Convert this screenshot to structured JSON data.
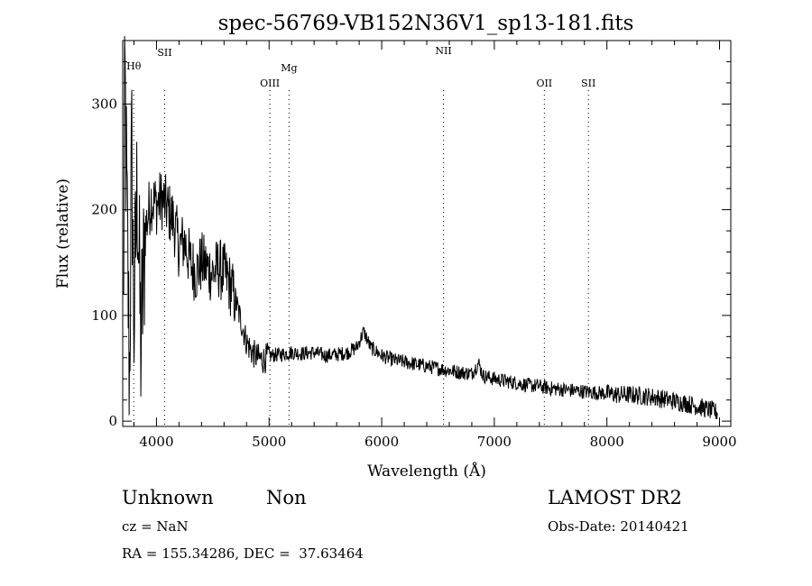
{
  "chart_data": {
    "type": "line",
    "title": "spec-56769-VB152N36V1_sp13-181.fits",
    "xlabel": "Wavelength (Å)",
    "ylabel": "Flux (relative)",
    "xlim": [
      3700,
      9100
    ],
    "ylim": [
      -5,
      360
    ],
    "xticks": [
      4000,
      5000,
      6000,
      7000,
      8000,
      9000
    ],
    "yticks": [
      0,
      100,
      200,
      300
    ],
    "grid": false,
    "spectrum_anchors": {
      "x": [
        3700,
        3720,
        3740,
        3760,
        3780,
        3800,
        3830,
        3860,
        3900,
        3950,
        4000,
        4050,
        4100,
        4150,
        4200,
        4250,
        4300,
        4350,
        4400,
        4450,
        4500,
        4550,
        4600,
        4650,
        4700,
        4750,
        4800,
        4850,
        4900,
        4950,
        5000,
        5100,
        5200,
        5300,
        5400,
        5500,
        5600,
        5700,
        5780,
        5840,
        5900,
        6000,
        6100,
        6200,
        6300,
        6400,
        6500,
        6600,
        6700,
        6800,
        6860,
        6900,
        7000,
        7100,
        7200,
        7300,
        7400,
        7500,
        7600,
        7700,
        7800,
        7900,
        8000,
        8100,
        8200,
        8300,
        8400,
        8500,
        8600,
        8700,
        8800,
        8900,
        8980
      ],
      "y": [
        20,
        320,
        180,
        40,
        260,
        90,
        230,
        70,
        180,
        210,
        205,
        210,
        200,
        190,
        165,
        170,
        150,
        140,
        150,
        145,
        140,
        145,
        140,
        130,
        115,
        95,
        75,
        65,
        60,
        58,
        62,
        63,
        65,
        64,
        65,
        62,
        63,
        65,
        70,
        85,
        70,
        62,
        58,
        56,
        54,
        52,
        50,
        48,
        46,
        45,
        55,
        43,
        40,
        38,
        36,
        34,
        33,
        31,
        30,
        29,
        28,
        27,
        26,
        25,
        25,
        24,
        23,
        21,
        19,
        17,
        14,
        11,
        8
      ]
    },
    "emission_lines": [
      {
        "label": "Hθ",
        "x": 3798
      },
      {
        "label": "SII",
        "x": 4072
      },
      {
        "label": "OIII",
        "x": 5007
      },
      {
        "label": "Mg",
        "x": 5177
      },
      {
        "label": "NII",
        "x": 6549
      },
      {
        "label": "OII",
        "x": 7444
      },
      {
        "label": "SII",
        "x": 7836
      }
    ]
  },
  "info": {
    "classification": "Unknown",
    "subclass": "Non",
    "cz": "cz = NaN",
    "coords": "RA = 155.34286, DEC =  37.63464",
    "survey": "LAMOST DR2",
    "obs_date": "Obs-Date: 20140421"
  }
}
